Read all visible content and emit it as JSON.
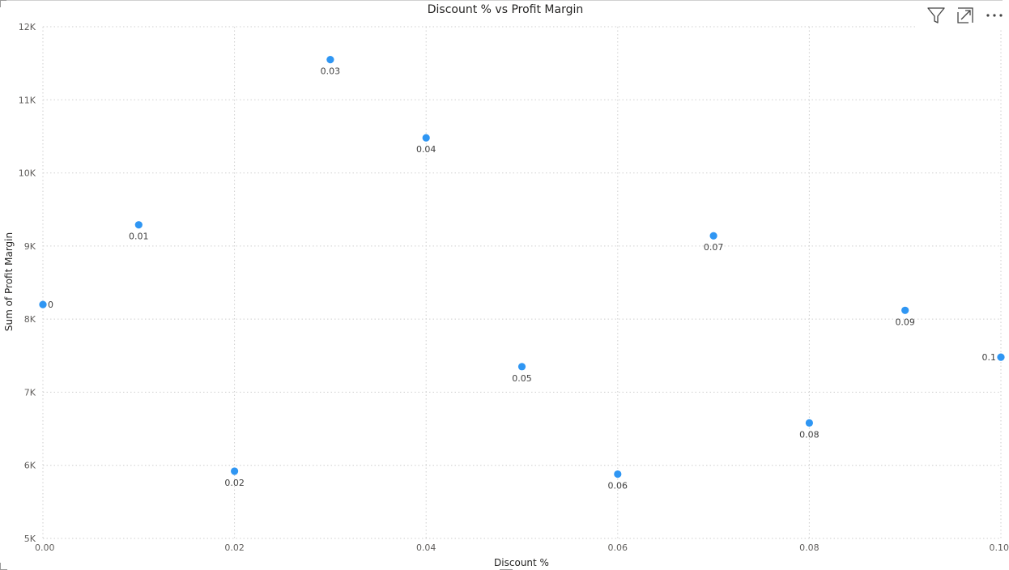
{
  "toolbar": {
    "filter_icon": "filter-icon",
    "focus_icon": "focus-mode-icon",
    "more_icon": "more-options-icon"
  },
  "chart_data": {
    "type": "scatter",
    "title": "Discount % vs Profit Margin",
    "xlabel": "Discount %",
    "ylabel": "Sum of Profit Margin",
    "xlim": [
      0,
      0.1
    ],
    "ylim": [
      5000,
      12000
    ],
    "x_ticks": [
      "0.00",
      "0.02",
      "0.04",
      "0.06",
      "0.08",
      "0.10"
    ],
    "y_ticks": [
      "5K",
      "6K",
      "7K",
      "8K",
      "9K",
      "10K",
      "11K",
      "12K"
    ],
    "grid": true,
    "point_color": "#2f96f3",
    "points": [
      {
        "x": 0.0,
        "y": 8200,
        "label": "0"
      },
      {
        "x": 0.01,
        "y": 9290,
        "label": "0.01"
      },
      {
        "x": 0.02,
        "y": 5920,
        "label": "0.02"
      },
      {
        "x": 0.03,
        "y": 11550,
        "label": "0.03"
      },
      {
        "x": 0.04,
        "y": 10480,
        "label": "0.04"
      },
      {
        "x": 0.05,
        "y": 7350,
        "label": "0.05"
      },
      {
        "x": 0.06,
        "y": 5880,
        "label": "0.06"
      },
      {
        "x": 0.07,
        "y": 9140,
        "label": "0.07"
      },
      {
        "x": 0.08,
        "y": 6580,
        "label": "0.08"
      },
      {
        "x": 0.09,
        "y": 8120,
        "label": "0.09"
      },
      {
        "x": 0.1,
        "y": 7480,
        "label": "0.1"
      }
    ]
  }
}
